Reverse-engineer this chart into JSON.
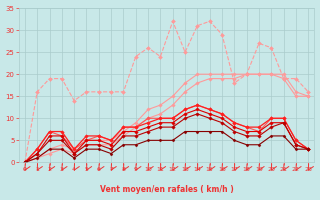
{
  "x": [
    0,
    1,
    2,
    3,
    4,
    5,
    6,
    7,
    8,
    9,
    10,
    11,
    12,
    13,
    14,
    15,
    16,
    17,
    18,
    19,
    20,
    21,
    22,
    23
  ],
  "series": [
    {
      "label": "rafales_max_dotted",
      "color": "#FF9999",
      "linewidth": 0.8,
      "marker": "D",
      "markersize": 2.0,
      "linestyle": "--",
      "values": [
        0,
        16,
        19,
        19,
        14,
        16,
        16,
        16,
        16,
        24,
        26,
        24,
        32,
        25,
        31,
        32,
        29,
        18,
        20,
        27,
        26,
        19,
        19,
        16
      ]
    },
    {
      "label": "rafales_solid_upper",
      "color": "#FF9999",
      "linewidth": 0.8,
      "marker": "D",
      "markersize": 1.8,
      "linestyle": "-",
      "values": [
        0,
        1,
        3,
        4,
        3,
        5,
        5,
        5,
        7,
        9,
        12,
        13,
        15,
        18,
        20,
        20,
        20,
        20,
        20,
        20,
        20,
        20,
        16,
        15
      ]
    },
    {
      "label": "rafales_solid_lower",
      "color": "#FF9999",
      "linewidth": 0.8,
      "marker": "D",
      "markersize": 1.8,
      "linestyle": "-",
      "values": [
        0,
        1,
        2,
        3,
        2,
        4,
        4,
        4,
        6,
        8,
        10,
        11,
        13,
        16,
        18,
        19,
        19,
        19,
        20,
        20,
        20,
        19,
        15,
        15
      ]
    },
    {
      "label": "vent_red_upper_dotted",
      "color": "#FF5555",
      "linewidth": 0.8,
      "marker": "D",
      "markersize": 1.8,
      "linestyle": "-",
      "values": [
        0,
        3,
        7,
        6,
        3,
        5,
        6,
        5,
        8,
        8,
        10,
        10,
        10,
        12,
        13,
        12,
        11,
        9,
        8,
        7,
        10,
        10,
        5,
        3
      ]
    },
    {
      "label": "vent_red_mid1",
      "color": "#FF2020",
      "linewidth": 0.9,
      "marker": "D",
      "markersize": 1.8,
      "linestyle": "-",
      "values": [
        0,
        3,
        7,
        7,
        3,
        6,
        6,
        5,
        8,
        8,
        9,
        10,
        10,
        12,
        13,
        12,
        11,
        9,
        8,
        8,
        10,
        10,
        5,
        3
      ]
    },
    {
      "label": "vent_red_mid2",
      "color": "#DD0000",
      "linewidth": 0.8,
      "marker": "D",
      "markersize": 1.8,
      "linestyle": "-",
      "values": [
        0,
        2,
        6,
        6,
        2,
        5,
        5,
        4,
        7,
        7,
        8,
        9,
        9,
        11,
        12,
        11,
        10,
        8,
        7,
        7,
        9,
        9,
        4,
        3
      ]
    },
    {
      "label": "vent_red_lower",
      "color": "#BB0000",
      "linewidth": 0.8,
      "marker": "D",
      "markersize": 1.8,
      "linestyle": "-",
      "values": [
        0,
        2,
        5,
        5,
        2,
        4,
        4,
        3,
        6,
        6,
        7,
        8,
        8,
        10,
        11,
        10,
        9,
        7,
        6,
        6,
        8,
        9,
        4,
        3
      ]
    },
    {
      "label": "vent_darkred_bottom",
      "color": "#880000",
      "linewidth": 0.8,
      "marker": "D",
      "markersize": 1.5,
      "linestyle": "-",
      "values": [
        0,
        1,
        3,
        3,
        1,
        3,
        3,
        2,
        4,
        4,
        5,
        5,
        5,
        7,
        7,
        7,
        7,
        5,
        4,
        4,
        6,
        6,
        3,
        3
      ]
    }
  ],
  "xlabel": "Vent moyen/en rafales ( km/h )",
  "xlim": [
    -0.5,
    23.5
  ],
  "ylim": [
    0,
    35
  ],
  "yticks": [
    0,
    5,
    10,
    15,
    20,
    25,
    30,
    35
  ],
  "xticks": [
    0,
    1,
    2,
    3,
    4,
    5,
    6,
    7,
    8,
    9,
    10,
    11,
    12,
    13,
    14,
    15,
    16,
    17,
    18,
    19,
    20,
    21,
    22,
    23
  ],
  "bg_color": "#C8E8E8",
  "grid_color": "#AACCCC",
  "tick_color": "#EE3333",
  "label_color": "#EE3333",
  "arrow_color": "#EE3333"
}
